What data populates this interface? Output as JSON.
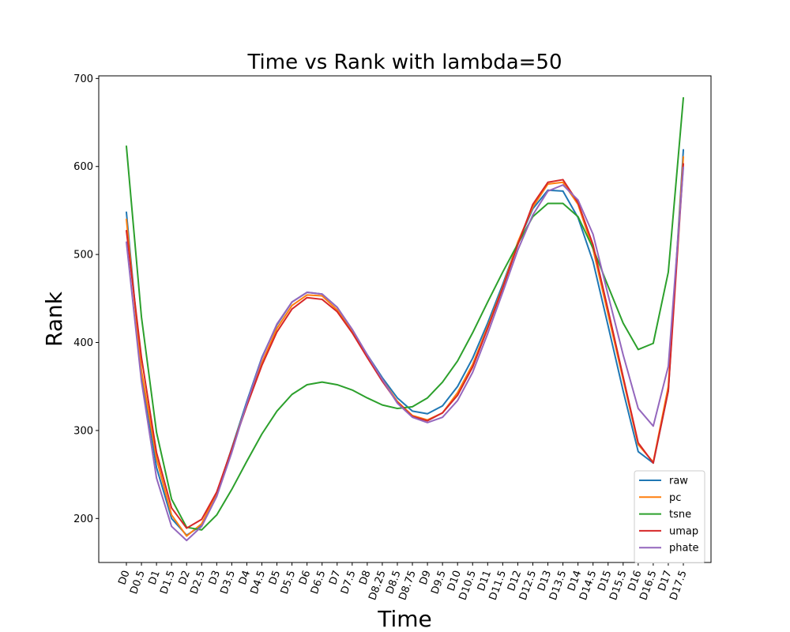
{
  "chart_data": {
    "type": "line",
    "title": "Time vs Rank with lambda=50",
    "xlabel": "Time",
    "ylabel": "Rank",
    "ylim": [
      150,
      703
    ],
    "yticks": [
      200,
      300,
      400,
      500,
      600,
      700
    ],
    "grid": false,
    "legend_position": "lower right",
    "categories": [
      "D0",
      "D0.5",
      "D1",
      "D1.5",
      "D2",
      "D2.5",
      "D3",
      "D3.5",
      "D4",
      "D4.5",
      "D5",
      "D5.5",
      "D6",
      "D6.5",
      "D7",
      "D7.5",
      "D8",
      "D8.25",
      "D8.5",
      "D8.75",
      "D9",
      "D9.5",
      "D10",
      "D10.5",
      "D11",
      "D11.5",
      "D12",
      "D12.5",
      "D13",
      "D13.5",
      "D14",
      "D14.5",
      "D15",
      "D15.5",
      "D16",
      "D16.5",
      "D17",
      "D17.5"
    ],
    "series": [
      {
        "name": "raw",
        "color": "#1f77b4",
        "values": [
          548,
          365,
          258,
          200,
          181,
          192,
          228,
          280,
          333,
          383,
          420,
          446,
          457,
          455,
          440,
          414,
          386,
          360,
          337,
          322,
          319,
          328,
          350,
          382,
          422,
          466,
          513,
          552,
          573,
          572,
          542,
          492,
          419,
          345,
          276,
          263,
          345,
          619
        ]
      },
      {
        "name": "pc",
        "color": "#ff7f0e",
        "values": [
          540,
          368,
          268,
          204,
          180,
          194,
          229,
          279,
          330,
          377,
          416,
          442,
          454,
          453,
          437,
          412,
          384,
          358,
          333,
          317,
          312,
          320,
          343,
          375,
          418,
          463,
          514,
          554,
          580,
          582,
          557,
          506,
          432,
          358,
          284,
          264,
          350,
          611
        ]
      },
      {
        "name": "tsne",
        "color": "#2ca02c",
        "values": [
          623,
          429,
          298,
          222,
          190,
          187,
          204,
          233,
          265,
          296,
          322,
          341,
          352,
          355,
          352,
          346,
          337,
          329,
          325,
          327,
          337,
          355,
          379,
          411,
          446,
          480,
          512,
          543,
          558,
          558,
          543,
          507,
          464,
          422,
          392,
          399,
          480,
          678
        ]
      },
      {
        "name": "umap",
        "color": "#d62728",
        "values": [
          527,
          383,
          275,
          212,
          189,
          199,
          230,
          279,
          328,
          374,
          412,
          438,
          451,
          449,
          435,
          411,
          383,
          356,
          332,
          316,
          311,
          320,
          340,
          372,
          416,
          462,
          511,
          557,
          582,
          585,
          559,
          511,
          437,
          361,
          286,
          263,
          345,
          603
        ]
      },
      {
        "name": "phate",
        "color": "#9467bd",
        "values": [
          514,
          356,
          246,
          191,
          175,
          191,
          225,
          275,
          331,
          382,
          421,
          446,
          457,
          455,
          440,
          415,
          386,
          358,
          331,
          315,
          309,
          315,
          334,
          366,
          410,
          457,
          505,
          545,
          572,
          579,
          562,
          523,
          454,
          386,
          325,
          305,
          373,
          599
        ]
      }
    ]
  }
}
